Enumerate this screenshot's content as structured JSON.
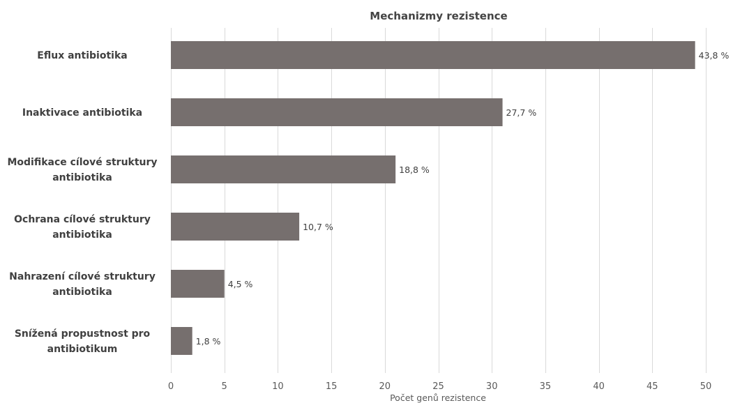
{
  "chart_data": {
    "type": "bar",
    "orientation": "horizontal",
    "title": "Mechanizmy rezistence",
    "xlabel": "Počet genů rezistence",
    "ylabel": "",
    "xlim": [
      0,
      50
    ],
    "x_ticks": [
      0,
      5,
      10,
      15,
      20,
      25,
      30,
      35,
      40,
      45,
      50
    ],
    "grid": "vertical",
    "bar_color": "#766f6e",
    "categories": [
      [
        "Eflux antibiotika"
      ],
      [
        "Inaktivace antibiotika"
      ],
      [
        "Modifikace cílové struktury",
        "antibiotika"
      ],
      [
        "Ochrana cílové struktury",
        "antibiotika"
      ],
      [
        "Nahrazení cílové struktury",
        "antibiotika"
      ],
      [
        "Snížená propustnost pro",
        "antibiotikum"
      ]
    ],
    "values": [
      49,
      31,
      21,
      12,
      5,
      2
    ],
    "data_labels": [
      "43,8 %",
      "27,7 %",
      "18,8 %",
      "10,7 %",
      "4,5 %",
      "1,8 %"
    ]
  }
}
